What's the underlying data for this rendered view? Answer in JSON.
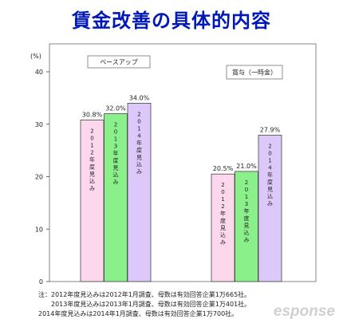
{
  "title": "賃金改善の具体的内容",
  "chart_data": {
    "type": "bar",
    "unit_label": "(%)",
    "ylim": [
      0,
      40
    ],
    "yticks": [
      "0",
      "10",
      "20",
      "30",
      "40"
    ],
    "grid": false,
    "groups": [
      {
        "name": "ベースアップ",
        "bars": [
          {
            "label": "2012年度見込み",
            "value": 30.8,
            "value_label": "30.8%"
          },
          {
            "label": "2013年度見込み",
            "value": 32.0,
            "value_label": "32.0%"
          },
          {
            "label": "2014年度見込み",
            "value": 34.0,
            "value_label": "34.0%"
          }
        ]
      },
      {
        "name": "賞与（一時金）",
        "bars": [
          {
            "label": "2012年度見込み",
            "value": 20.5,
            "value_label": "20.5%"
          },
          {
            "label": "2013年度見込み",
            "value": 21.0,
            "value_label": "21.0%"
          },
          {
            "label": "2014年度見込み",
            "value": 27.9,
            "value_label": "27.9%"
          }
        ]
      }
    ],
    "colors": {
      "2012": "#fdd7ec",
      "2013": "#8af08a",
      "2014": "#ddc8fa"
    }
  },
  "notes": [
    "注：2012年度見込みは2012年1月調査、母数は有効回答企業1万665社。",
    "2013年度見込みは2013年1月調査、母数は有効回答企業1万401社。",
    "2014年度見込みは2014年1月調査、母数は有効回答企業1万700社。"
  ],
  "watermark": "esponse"
}
